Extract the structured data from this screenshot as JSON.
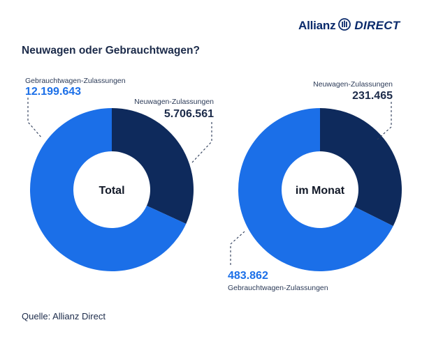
{
  "logo": {
    "brand": "Allianz",
    "suffix": "DIRECT"
  },
  "title": "Neuwagen oder Gebrauchtwagen?",
  "source": "Quelle: Allianz Direct",
  "colors": {
    "neu": "#0e2a5c",
    "gebraucht": "#1b6fe8",
    "text": "#1c2b4a"
  },
  "chart_data": [
    {
      "type": "pie",
      "title": "Total",
      "slices": [
        {
          "label": "Neuwagen-Zulassungen",
          "value": 5706561,
          "display": "5.706.561",
          "color": "#0e2a5c"
        },
        {
          "label": "Gebrauchtwagen-Zulassungen",
          "value": 12199643,
          "display": "12.199.643",
          "color": "#1b6fe8"
        }
      ]
    },
    {
      "type": "pie",
      "title": "im Monat",
      "slices": [
        {
          "label": "Neuwagen-Zulassungen",
          "value": 231465,
          "display": "231.465",
          "color": "#0e2a5c"
        },
        {
          "label": "Gebrauchtwagen-Zulassungen",
          "value": 483862,
          "display": "483.862",
          "color": "#1b6fe8"
        }
      ]
    }
  ]
}
